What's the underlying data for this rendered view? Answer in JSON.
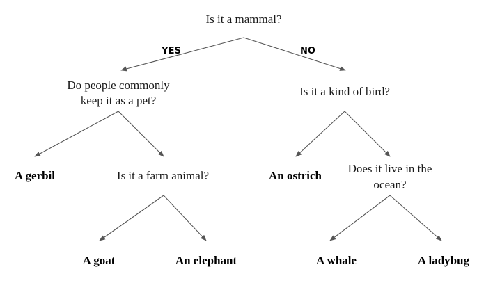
{
  "tree": {
    "root": {
      "text": "Is it a mammal?"
    },
    "branch_labels": {
      "yes": "YES",
      "no": "NO"
    },
    "pet_question": {
      "line1": "Do people commonly",
      "line2": "keep it as a pet?"
    },
    "bird_question": {
      "text": "Is it a kind of bird?"
    },
    "farm_question": {
      "text": "Is it a farm animal?"
    },
    "ocean_question": {
      "line1": "Does it live in the",
      "line2": "ocean?"
    },
    "leaves": {
      "gerbil": "A gerbil",
      "ostrich": "An ostrich",
      "goat": "A goat",
      "elephant": "An elephant",
      "whale": "A whale",
      "ladybug": "A ladybug"
    }
  }
}
